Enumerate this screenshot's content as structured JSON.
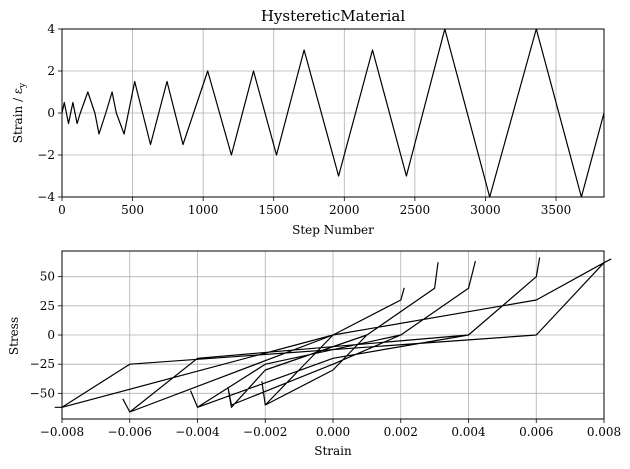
{
  "chart_data": [
    {
      "type": "line",
      "title": "HystereticMaterial",
      "xlabel": "Step Number",
      "ylabel": "Strain / ε",
      "ylabel_subscript": "y",
      "xlim": [
        0,
        3840
      ],
      "ylim": [
        -4,
        4
      ],
      "xticks": [
        0,
        500,
        1000,
        1500,
        2000,
        2500,
        3000,
        3500
      ],
      "xtick_labels": [
        "0",
        "500",
        "1000",
        "1500",
        "2000",
        "2500",
        "3000",
        "3500"
      ],
      "yticks": [
        4,
        2,
        0,
        -2,
        -4
      ],
      "ytick_labels": [
        "4",
        "2",
        "0",
        "−2",
        "−4"
      ],
      "grid": true,
      "series": [
        {
          "color": "#000000",
          "x": [
            0,
            16,
            46,
            77,
            107,
            130,
            183,
            233,
            262,
            310,
            355,
            385,
            440,
            515,
            627,
            744,
            857,
            1032,
            1200,
            1357,
            1520,
            1715,
            1960,
            2200,
            2440,
            2712,
            3030,
            3360,
            3680,
            3840
          ],
          "y": [
            0,
            0.5,
            -0.5,
            0.5,
            -0.5,
            0,
            1,
            0,
            -1,
            0,
            1,
            0,
            -1,
            1.5,
            -1.5,
            1.5,
            -1.5,
            2,
            -2,
            2,
            -2,
            3,
            -3,
            3,
            -3,
            4,
            -4,
            4,
            -4,
            0
          ]
        }
      ]
    },
    {
      "type": "line",
      "title": "",
      "xlabel": "Strain",
      "ylabel": "Stress",
      "xlim": [
        -0.008,
        0.008
      ],
      "ylim": [
        -72,
        72
      ],
      "xticks": [
        -0.008,
        -0.006,
        -0.004,
        -0.002,
        0,
        0.002,
        0.004,
        0.006,
        0.008
      ],
      "xtick_labels": [
        "−0.008",
        "−0.006",
        "−0.004",
        "−0.002",
        "0.000",
        "0.002",
        "0.004",
        "0.006",
        "0.008"
      ],
      "yticks": [
        50,
        25,
        0,
        -25,
        -50
      ],
      "ytick_labels": [
        "50",
        "25",
        "0",
        "−25",
        "−50"
      ],
      "grid": true,
      "series": [
        {
          "color": "#000000",
          "x": [
            0,
            0.002,
            0.0021,
            0.002,
            0.0,
            -0.001,
            -0.002,
            -0.0021,
            -0.002,
            0,
            0.001,
            0.003,
            0.0031,
            0.003,
            0.001,
            -0.002,
            -0.003,
            -0.0031,
            -0.003,
            0,
            0.002,
            0.004,
            0.0042,
            0.004,
            0.002,
            -0.002,
            -0.004,
            -0.0042,
            -0.004,
            0,
            0.004,
            0.006,
            0.0061,
            0.006,
            0.004,
            -0.004,
            -0.006,
            -0.0062,
            -0.006,
            0,
            0.006,
            0.008,
            0.0082,
            0.008,
            0.006,
            -0.006,
            -0.008,
            -0.0082,
            -0.008,
            0
          ],
          "y": [
            0,
            30,
            40,
            30,
            0,
            -30,
            -60,
            -40,
            -60,
            -30,
            0,
            40,
            62,
            40,
            0,
            -30,
            -62,
            -45,
            -60,
            -25,
            0,
            40,
            63,
            40,
            0,
            -25,
            -62,
            -48,
            -62,
            -20,
            0,
            50,
            66,
            50,
            0,
            -20,
            -66,
            -55,
            -66,
            0,
            30,
            62,
            65,
            62,
            0,
            -25,
            -62,
            -62,
            -62,
            0
          ]
        }
      ]
    }
  ]
}
